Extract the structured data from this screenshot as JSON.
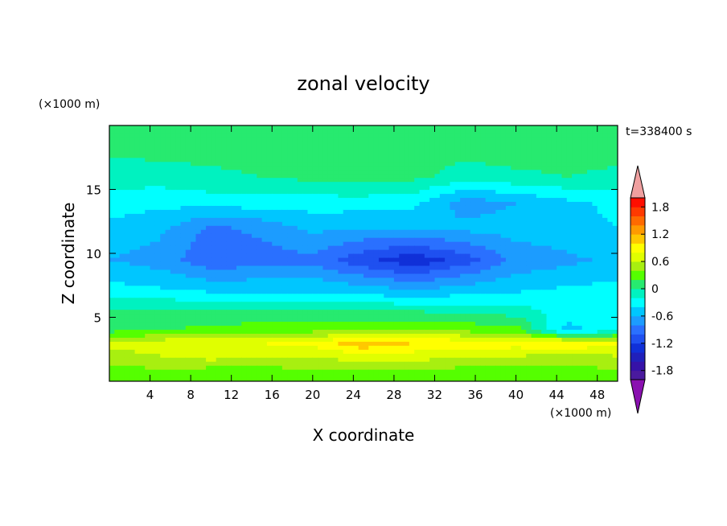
{
  "chart_data": {
    "type": "heatmap",
    "title": "zonal velocity",
    "xlabel": "X coordinate",
    "ylabel": "Z coordinate",
    "x_unit": "(×1000 m)",
    "y_unit": "(×1000 m)",
    "time_label": "t=338400 s",
    "xlim": [
      0,
      50
    ],
    "ylim": [
      0,
      20
    ],
    "x_ticks": [
      4,
      8,
      12,
      16,
      20,
      24,
      28,
      32,
      36,
      40,
      44,
      48
    ],
    "y_ticks": [
      5,
      10,
      15
    ],
    "colorbar": {
      "levels": [
        -2.0,
        -1.8,
        -1.6,
        -1.4,
        -1.2,
        -1.0,
        -0.8,
        -0.6,
        -0.4,
        -0.2,
        0,
        0.2,
        0.4,
        0.6,
        0.8,
        1.0,
        1.2,
        1.4,
        1.6,
        1.8,
        2.0
      ],
      "colors": [
        "#4a1a9e",
        "#3612a8",
        "#2020bb",
        "#1030d8",
        "#1f50f0",
        "#2a70ff",
        "#1c9cff",
        "#00c6ff",
        "#00ffff",
        "#00f2c0",
        "#27ea6f",
        "#55ff00",
        "#a8ef10",
        "#e0ff00",
        "#ffff00",
        "#ffc800",
        "#ff9a00",
        "#ff6a00",
        "#ff3a00",
        "#ff0e00"
      ],
      "tick_labels": [
        "1.8",
        "1.2",
        "0.6",
        "0",
        "-0.6",
        "-1.2",
        "-1.8"
      ],
      "tick_values": [
        1.8,
        1.2,
        0.6,
        0,
        -0.6,
        -1.2,
        -1.8
      ],
      "over_color": "#f0a0a0",
      "under_color": "#8a10b0"
    },
    "field_description": {
      "x_samples": [
        0,
        5,
        10,
        15,
        20,
        25,
        30,
        35,
        40,
        45,
        50
      ],
      "bands": [
        {
          "z": 0.5,
          "u": [
            0.25,
            0.3,
            0.2,
            0.25,
            0.3,
            0.25,
            0.3,
            0.25,
            0.2,
            0.25,
            0.3
          ]
        },
        {
          "z": 2.0,
          "u": [
            0.5,
            0.6,
            0.7,
            0.6,
            0.6,
            0.75,
            0.7,
            0.6,
            0.6,
            0.55,
            0.6
          ]
        },
        {
          "z": 3.0,
          "u": [
            0.65,
            0.75,
            0.8,
            0.8,
            0.85,
            1.15,
            1.0,
            0.95,
            0.9,
            1.0,
            0.8
          ]
        },
        {
          "z": 4.0,
          "u": [
            0.15,
            0.2,
            0.25,
            0.3,
            0.35,
            0.45,
            0.45,
            0.35,
            0.3,
            -0.5,
            -0.2
          ]
        },
        {
          "z": 5.5,
          "u": [
            0.0,
            0.05,
            0.05,
            0.05,
            0.0,
            0.0,
            0.0,
            -0.05,
            -0.1,
            -0.3,
            -0.2
          ]
        },
        {
          "z": 7.0,
          "u": [
            -0.3,
            -0.35,
            -0.4,
            -0.4,
            -0.4,
            -0.45,
            -0.55,
            -0.45,
            -0.4,
            -0.35,
            -0.3
          ]
        },
        {
          "z": 9.5,
          "u": [
            -0.6,
            -0.7,
            -0.95,
            -0.9,
            -0.85,
            -1.15,
            -1.35,
            -1.1,
            -0.75,
            -0.65,
            -0.55
          ]
        },
        {
          "z": 12.0,
          "u": [
            -0.45,
            -0.55,
            -0.85,
            -0.75,
            -0.55,
            -0.6,
            -0.6,
            -0.55,
            -0.5,
            -0.45,
            -0.4
          ]
        },
        {
          "z": 14.0,
          "u": [
            -0.3,
            -0.35,
            -0.3,
            -0.3,
            -0.3,
            -0.3,
            -0.35,
            -0.7,
            -0.6,
            -0.45,
            -0.35
          ]
        },
        {
          "z": 16.0,
          "u": [
            -0.1,
            -0.1,
            -0.05,
            0.0,
            0.05,
            0.1,
            0.05,
            -0.1,
            -0.05,
            0.0,
            -0.05
          ]
        },
        {
          "z": 18.5,
          "u": [
            0.05,
            0.1,
            0.1,
            0.1,
            0.15,
            0.15,
            0.15,
            0.1,
            0.15,
            0.1,
            0.1
          ]
        }
      ]
    }
  }
}
